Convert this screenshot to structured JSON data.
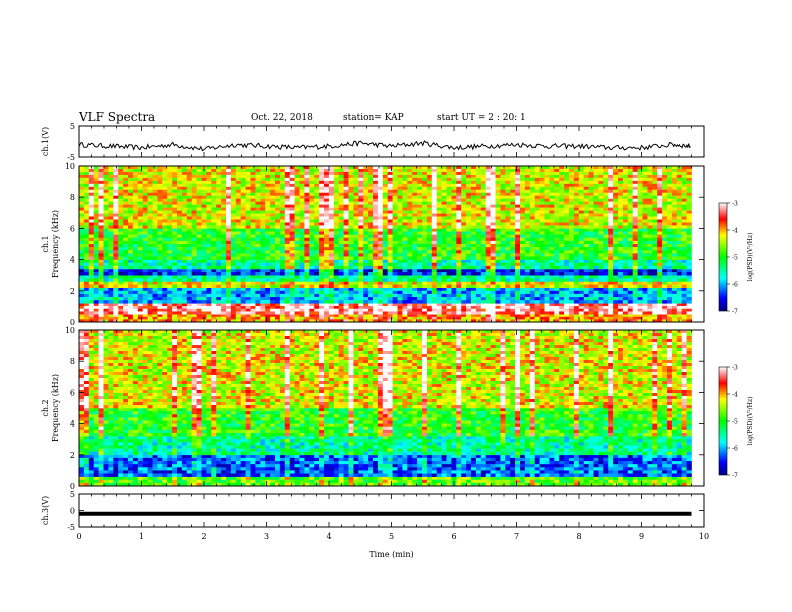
{
  "header": {
    "title": "VLF Spectra",
    "date": "Oct. 22, 2018",
    "station": "station= KAP",
    "start": "start  UT =   2 : 20: 1"
  },
  "chart_data": [
    {
      "type": "line",
      "panel": "ch1-voltage",
      "ylabel": "ch.1(V)",
      "ylim": [
        -5,
        5
      ],
      "yticks": [
        "5",
        "-5"
      ],
      "x_range_min": [
        0,
        9.8
      ],
      "description_of_series": "noisy trace oscillating between about -3 and 0 V",
      "x": [
        0,
        0.5,
        1,
        1.5,
        2,
        2.5,
        3,
        3.5,
        4,
        4.5,
        5,
        5.5,
        6,
        6.5,
        7,
        7.5,
        8,
        8.5,
        9,
        9.5,
        9.8
      ],
      "values": [
        -1,
        -1.5,
        -2,
        -1,
        -2.5,
        -1,
        -1.5,
        -2,
        -1.5,
        -0.5,
        -1.5,
        -0.5,
        -2,
        -1.5,
        -1,
        -1.5,
        -1.5,
        -2,
        -2,
        -1,
        -1.5
      ]
    },
    {
      "type": "heatmap",
      "panel": "ch1-spectrogram",
      "ylabel": "ch.1",
      "ylabel2": "Frequency (kHz)",
      "ylim": [
        0,
        10
      ],
      "yticks": [
        "0",
        "2",
        "4",
        "6",
        "8",
        "10"
      ],
      "colorbar": {
        "label": "log(PSD)(V²/Hz)",
        "range": [
          -7,
          -3
        ],
        "ticks": [
          "-3",
          "-4",
          "-5",
          "-6",
          "-7"
        ]
      },
      "bands": [
        {
          "f": [
            0,
            0.5
          ],
          "level": -4.0
        },
        {
          "f": [
            0.5,
            1.2
          ],
          "level": -3.3
        },
        {
          "f": [
            1.2,
            2.2
          ],
          "level": -6.0
        },
        {
          "f": [
            2.2,
            2.6
          ],
          "level": -4.3
        },
        {
          "f": [
            2.6,
            3.0
          ],
          "level": -5.5
        },
        {
          "f": [
            3.0,
            3.4
          ],
          "level": -6.5
        },
        {
          "f": [
            3.4,
            4.0
          ],
          "level": -5.5
        },
        {
          "f": [
            4.0,
            6.0
          ],
          "level": -5.0
        },
        {
          "f": [
            6.0,
            10.0
          ],
          "level": -4.3
        }
      ]
    },
    {
      "type": "heatmap",
      "panel": "ch2-spectrogram",
      "ylabel": "ch.2",
      "ylabel2": "Frequency (kHz)",
      "ylim": [
        0,
        10
      ],
      "yticks": [
        "0",
        "2",
        "4",
        "6",
        "8",
        "10"
      ],
      "colorbar": {
        "label": "log(PSD)(V²/Hz)",
        "range": [
          -7,
          -3
        ],
        "ticks": [
          "-3",
          "-4",
          "-5",
          "-6",
          "-7"
        ]
      },
      "bands": [
        {
          "f": [
            0,
            0.6
          ],
          "level": -4.8
        },
        {
          "f": [
            0.6,
            2.0
          ],
          "level": -6.3
        },
        {
          "f": [
            2.0,
            3.2
          ],
          "level": -5.5
        },
        {
          "f": [
            3.2,
            5.0
          ],
          "level": -5.0
        },
        {
          "f": [
            5.0,
            10.0
          ],
          "level": -4.3
        }
      ]
    },
    {
      "type": "line",
      "panel": "ch3-voltage",
      "ylabel": "ch.3(V)",
      "ylim": [
        -5,
        5
      ],
      "yticks": [
        "5",
        "0",
        "-5"
      ],
      "x": [
        0,
        9.8
      ],
      "values": [
        -1,
        -1
      ]
    }
  ],
  "x_axis": {
    "xlabel": "Time (min)",
    "xlim": [
      0,
      10
    ],
    "xticks": [
      "0",
      "1",
      "2",
      "3",
      "4",
      "5",
      "6",
      "7",
      "8",
      "9",
      "10"
    ]
  },
  "colors": {
    "frame": "#000000",
    "trace": "#000000"
  }
}
